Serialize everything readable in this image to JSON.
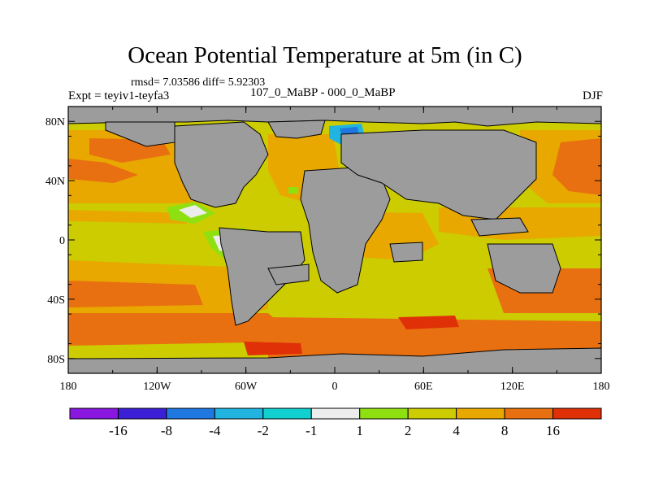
{
  "header": {
    "title": "Ocean Potential Temperature at 5m (in C)",
    "stats": "rmsd= 7.03586 diff= 5.92303",
    "experiment": "Expt = teyiv1-teyfa3",
    "period": "107_0_MaBP - 000_0_MaBP",
    "season": "DJF"
  },
  "axes": {
    "lon_labels": [
      "180",
      "120W",
      "60W",
      "0",
      "60E",
      "120E",
      "180"
    ],
    "lat_labels": [
      "80N",
      "40N",
      "0",
      "40S",
      "80S"
    ]
  },
  "colorbar": {
    "labels": [
      "-16",
      "-8",
      "-4",
      "-2",
      "-1",
      "1",
      "2",
      "4",
      "8",
      "16"
    ],
    "colors": [
      "#8a17e0",
      "#3b1fd6",
      "#1e78e0",
      "#22b4e0",
      "#10d0d0",
      "#ececec",
      "#8fe010",
      "#cccc00",
      "#e8a800",
      "#e87010",
      "#e03008"
    ]
  },
  "map_colors": {
    "land": "#9c9c9c",
    "coast": "#000000"
  }
}
